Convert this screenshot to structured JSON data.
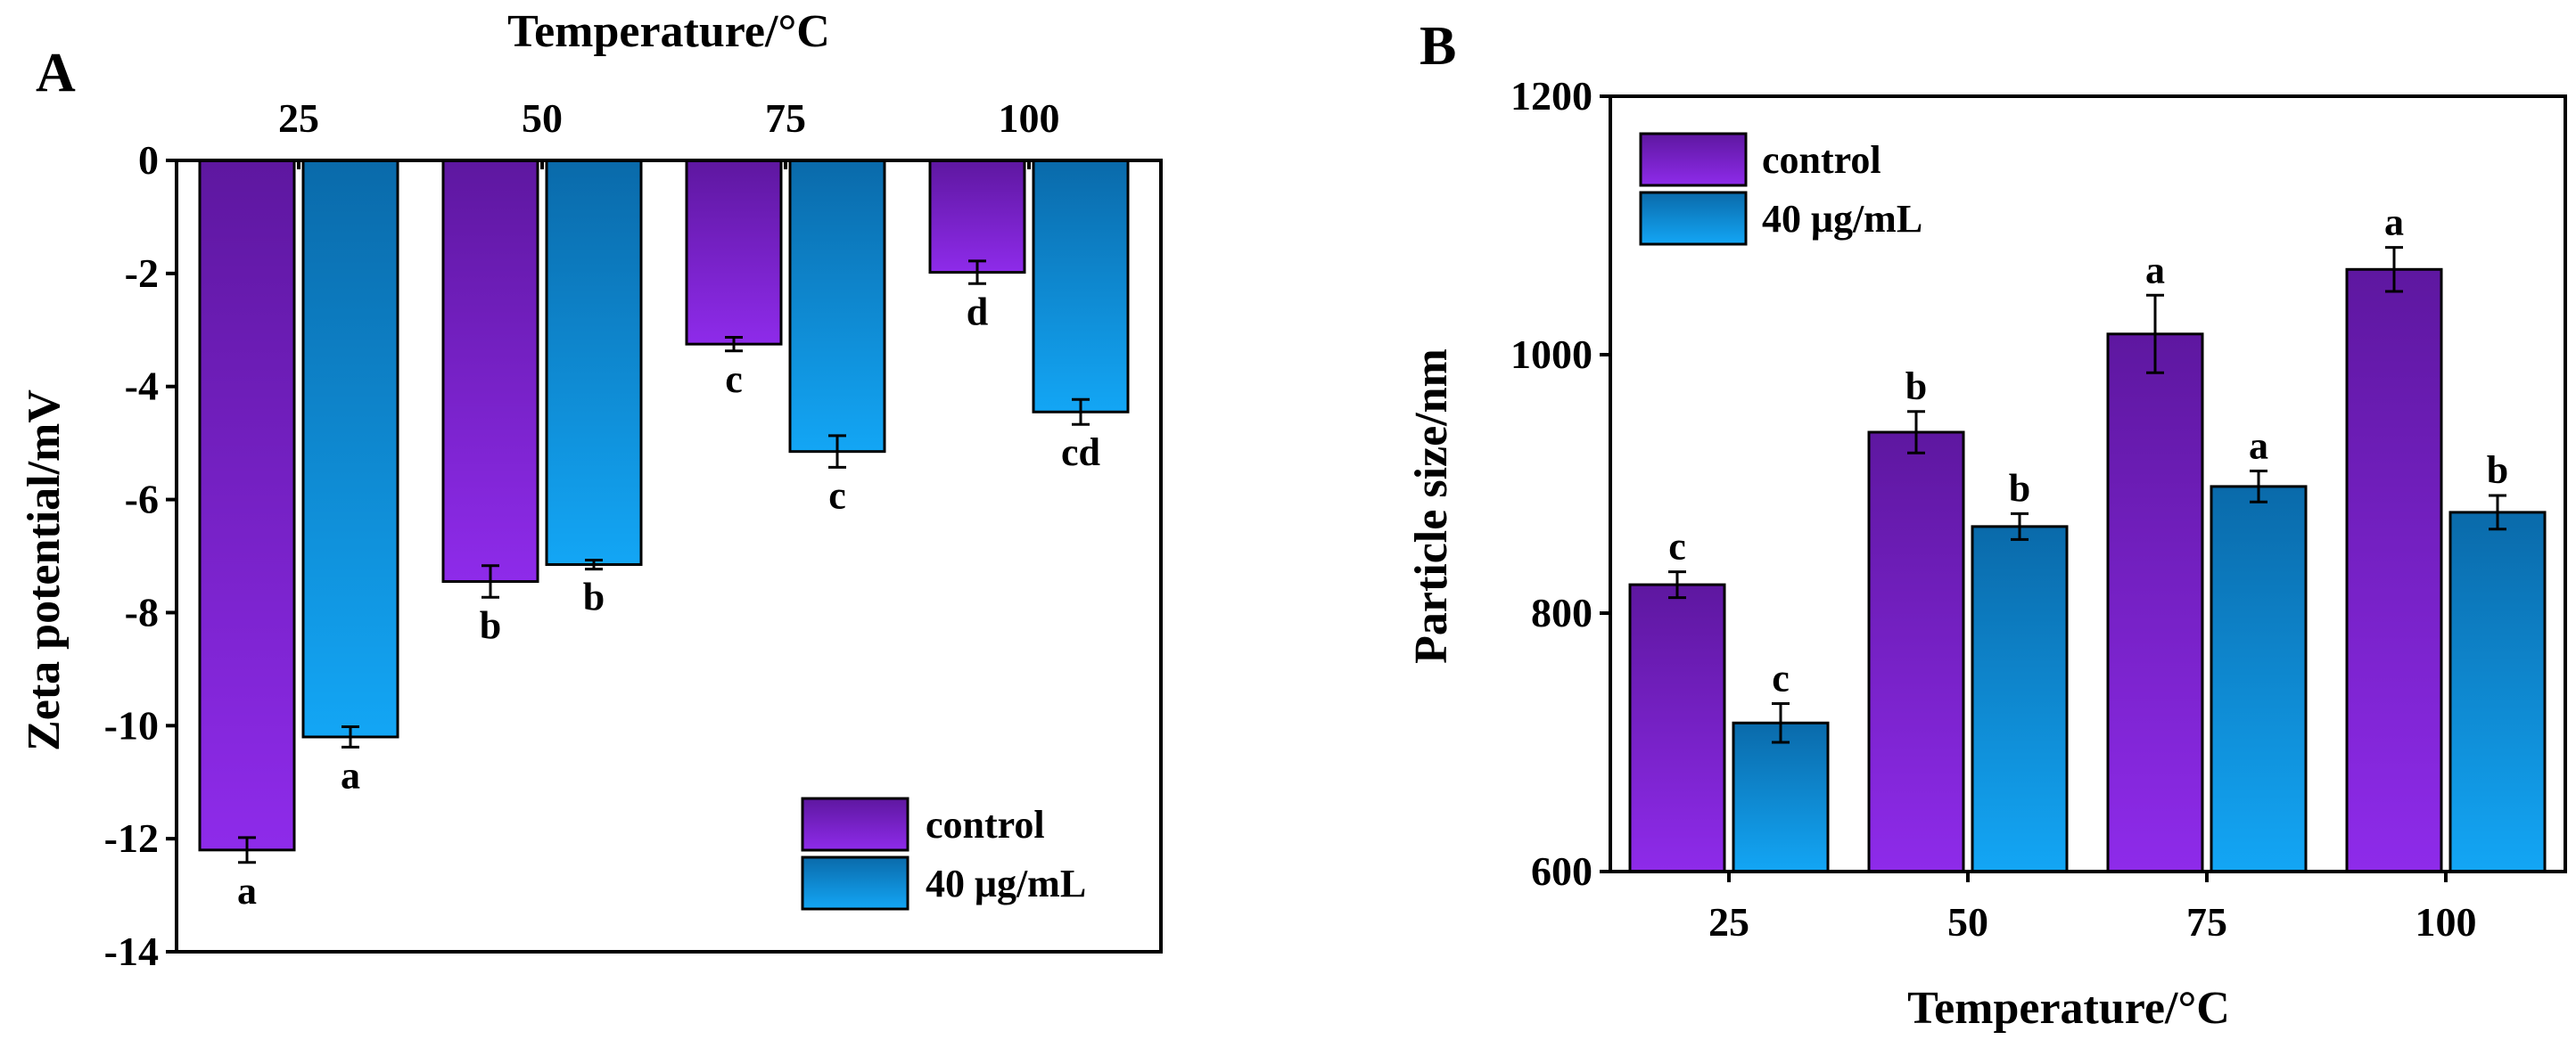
{
  "colors": {
    "control_top": "#5e17a0",
    "control_bottom": "#8e2bea",
    "treat_top": "#0a6aaa",
    "treat_bottom": "#13a6f5",
    "axis": "#000000"
  },
  "chart_data": [
    {
      "type": "bar",
      "panel": "A",
      "title": "Temperature/°C",
      "xlabel": "Temperature/°C",
      "ylabel": "Zeta potential/mV",
      "categories": [
        "25",
        "50",
        "75",
        "100"
      ],
      "ylim": [
        -14,
        0
      ],
      "yticks": [
        0,
        -2,
        -4,
        -6,
        -8,
        -10,
        -12,
        -14
      ],
      "ytick_labels": [
        "0",
        "-2",
        "-4",
        "-6",
        "-8",
        "-10",
        "-12",
        "-14"
      ],
      "x_axis_position": "top",
      "legend_position": "bottom-right",
      "series": [
        {
          "name": "control",
          "values": [
            -12.2,
            -7.45,
            -3.25,
            -1.98
          ],
          "errors": [
            0.22,
            0.28,
            0.12,
            0.2
          ],
          "labels": [
            "a",
            "b",
            "c",
            "d"
          ]
        },
        {
          "name": "40 μg/mL",
          "values": [
            -10.2,
            -7.15,
            -5.15,
            -4.45
          ],
          "errors": [
            0.18,
            0.08,
            0.28,
            0.22
          ],
          "labels": [
            "a",
            "b",
            "c",
            "cd"
          ]
        }
      ]
    },
    {
      "type": "bar",
      "panel": "B",
      "xlabel": "Temperature/°C",
      "ylabel": "Particle size/nm",
      "categories": [
        "25",
        "50",
        "75",
        "100"
      ],
      "ylim": [
        600,
        1200
      ],
      "yticks": [
        600,
        800,
        1000,
        1200
      ],
      "ytick_labels": [
        "600",
        "800",
        "1000",
        "1200"
      ],
      "x_axis_position": "bottom",
      "legend_position": "top-left",
      "series": [
        {
          "name": "control",
          "values": [
            822,
            940,
            1016,
            1066
          ],
          "errors": [
            10,
            16,
            30,
            17
          ],
          "labels": [
            "c",
            "b",
            "a",
            "a"
          ]
        },
        {
          "name": "40 μg/mL",
          "values": [
            715,
            867,
            898,
            878
          ],
          "errors": [
            15,
            10,
            12,
            13
          ],
          "labels": [
            "c",
            "b",
            "a",
            "b"
          ]
        }
      ]
    }
  ]
}
